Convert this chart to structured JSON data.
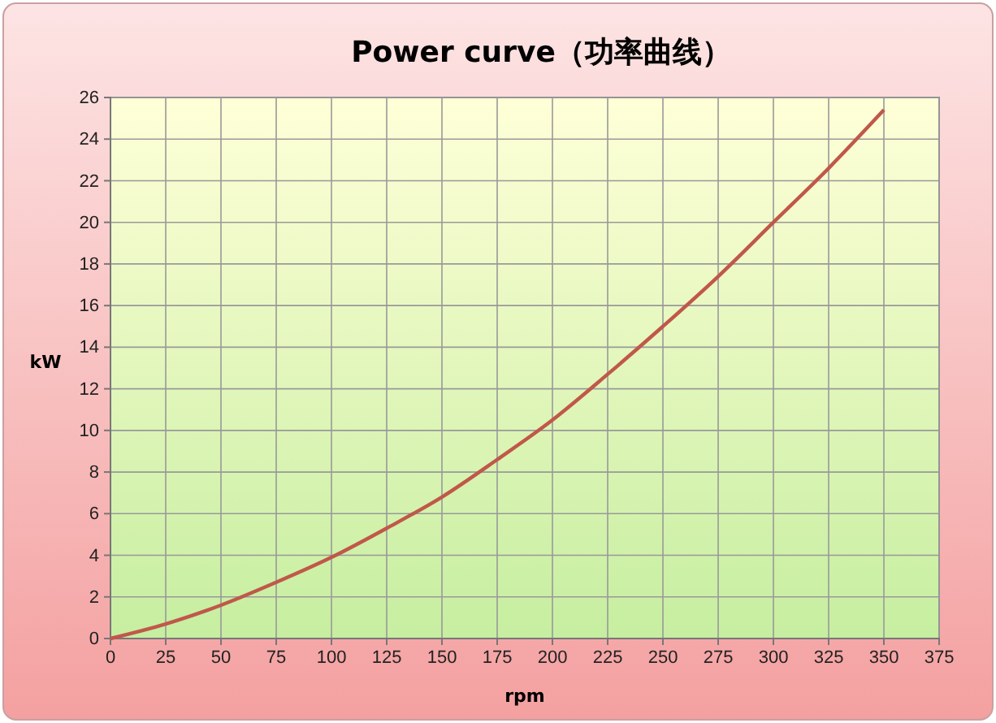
{
  "chart_data": {
    "type": "line",
    "title": "Power curve（功率曲线）",
    "xlabel": "rpm",
    "ylabel": "kW",
    "x": [
      0,
      25,
      50,
      75,
      100,
      125,
      150,
      175,
      200,
      225,
      250,
      275,
      300,
      325,
      350
    ],
    "series": [
      {
        "color": "#c0584a",
        "values": [
          0,
          0.7,
          1.6,
          2.7,
          3.9,
          5.3,
          6.8,
          8.6,
          10.5,
          12.7,
          15.0,
          17.4,
          20.0,
          22.6,
          25.4
        ]
      }
    ],
    "xlim": [
      0,
      375
    ],
    "xticks": [
      0,
      25,
      50,
      75,
      100,
      125,
      150,
      175,
      200,
      225,
      250,
      275,
      300,
      325,
      350,
      375
    ],
    "ylim": [
      0,
      26
    ],
    "yticks": [
      0,
      2,
      4,
      6,
      8,
      10,
      12,
      14,
      16,
      18,
      20,
      22,
      24,
      26
    ],
    "grid": true,
    "marker": "none",
    "line_style": "solid"
  }
}
